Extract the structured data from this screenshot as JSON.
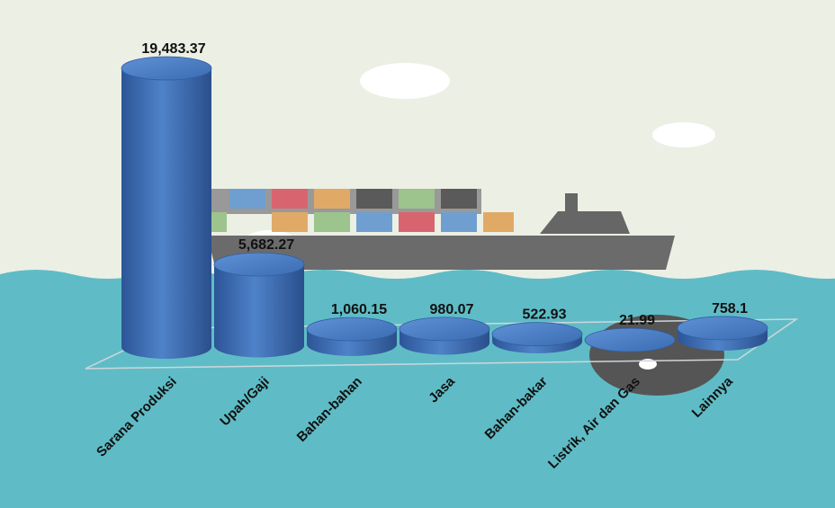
{
  "chart_data": {
    "type": "bar",
    "categories": [
      "Sarana Produksi",
      "Upah/Gaji",
      "Bahan-bahan",
      "Jasa",
      "Bahan-bakar",
      "Listrik, Air dan Gas",
      "Lainnya"
    ],
    "values": [
      19483.37,
      5682.27,
      1060.15,
      980.07,
      522.93,
      21.99,
      758.1
    ],
    "value_labels": [
      "19,483.37",
      "5,682.27",
      "1,060.15",
      "980.07",
      "522.93",
      "21.99",
      "758.1"
    ],
    "color": "#3f6fb5"
  }
}
